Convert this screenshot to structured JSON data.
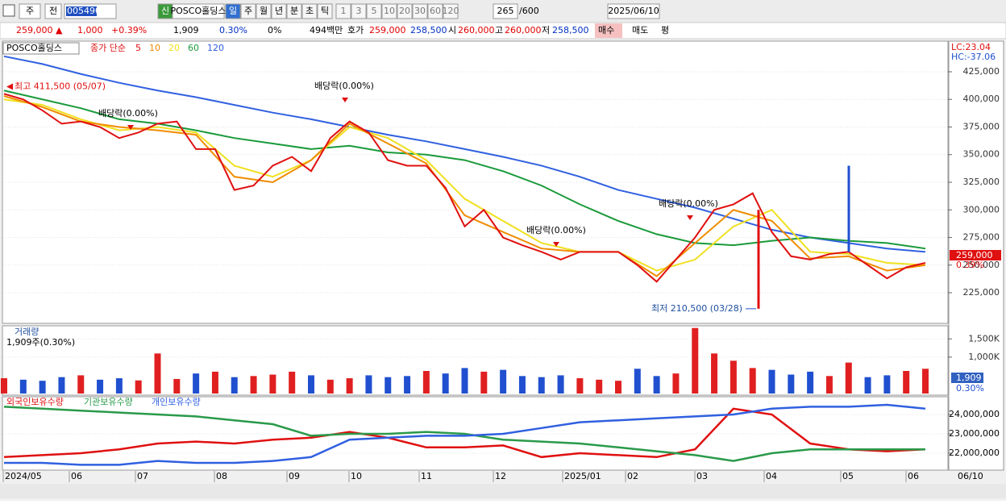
{
  "toolbar": {
    "kind": "주",
    "mode": "전",
    "code": "005490",
    "name": "POSCO홀딩스",
    "new": "신",
    "periods": [
      "일",
      "주",
      "월",
      "년",
      "분",
      "초",
      "틱"
    ],
    "intervals": [
      "1",
      "3",
      "5",
      "10",
      "20",
      "30",
      "60",
      "120"
    ],
    "count": "265",
    "max": "/600",
    "date": "2025/06/10"
  },
  "quote": [
    {
      "text": "259,000 ▲",
      "color": "#e00000"
    },
    {
      "text": "1,000",
      "color": "#e00000"
    },
    {
      "text": "+0.39%",
      "color": "#e00000"
    },
    {
      "text": "1,909",
      "color": "#000"
    },
    {
      "text": "0.30%",
      "color": "#0030c0"
    },
    {
      "text": "0%",
      "color": "#000"
    },
    {
      "text": "494백만",
      "color": "#000"
    },
    {
      "text": "호가",
      "color": "#000"
    },
    {
      "text": "259,000",
      "color": "#e00000"
    },
    {
      "text": "258,500",
      "color": "#0030c0"
    },
    {
      "text": "시",
      "color": "#000"
    },
    {
      "text": "260,000",
      "color": "#e00000"
    },
    {
      "text": "고",
      "color": "#000"
    },
    {
      "text": "260,000",
      "color": "#e00000"
    },
    {
      "text": "저",
      "color": "#000"
    },
    {
      "text": "258,500",
      "color": "#0030c0"
    },
    {
      "text": "매수",
      "color": "#000"
    },
    {
      "text": "매도",
      "color": "#000"
    },
    {
      "text": "평",
      "color": "#000"
    }
  ],
  "price_chart": {
    "type": "line",
    "name": "POSCO홀딩스",
    "legend_title": "종가 단순",
    "lc": "LC:23.04",
    "hc": "HC:-37.06",
    "ylim": [
      198000,
      452000
    ],
    "yticks": [
      {
        "value": 425000,
        "label": "425,000"
      },
      {
        "value": 400000,
        "label": "400,000"
      },
      {
        "value": 375000,
        "label": "375,000"
      },
      {
        "value": 350000,
        "label": "350,000"
      },
      {
        "value": 325000,
        "label": "325,000"
      },
      {
        "value": 300000,
        "label": "300,000"
      },
      {
        "value": 275000,
        "label": "275,000"
      },
      {
        "value": 250000,
        "label": "250,000"
      },
      {
        "value": 225000,
        "label": "225,000"
      }
    ],
    "series": [
      {
        "name": "5",
        "color": "#e01010",
        "values": [
          405000,
          400000,
          390000,
          378000,
          380000,
          375000,
          365000,
          370000,
          378000,
          380000,
          355000,
          355000,
          318000,
          322000,
          340000,
          348000,
          335000,
          365000,
          380000,
          370000,
          345000,
          340000,
          340000,
          320000,
          285000,
          300000,
          275000,
          268000,
          262000,
          255000,
          262000,
          262000,
          262000,
          250000,
          235000,
          255000,
          275000,
          300000,
          305000,
          315000,
          280000,
          258000,
          255000,
          260000,
          262000,
          250000,
          238000,
          248000,
          252000
        ]
      },
      {
        "name": "10",
        "color": "#f08c00",
        "values": [
          403000,
          393000,
          380000,
          375000,
          372000,
          368000,
          330000,
          325000,
          345000,
          378000,
          360000,
          342000,
          295000,
          280000,
          265000,
          262000,
          262000,
          240000,
          270000,
          300000,
          290000,
          256000,
          258000,
          245000,
          250000
        ]
      },
      {
        "name": "20",
        "color": "#f0e020",
        "values": [
          400000,
          395000,
          382000,
          372000,
          375000,
          370000,
          340000,
          330000,
          345000,
          375000,
          365000,
          345000,
          310000,
          290000,
          270000,
          262000,
          262000,
          245000,
          255000,
          285000,
          300000,
          262000,
          260000,
          252000,
          250000
        ]
      },
      {
        "name": "60",
        "color": "#1a9a3a",
        "values": [
          408000,
          400000,
          392000,
          382000,
          378000,
          372000,
          365000,
          360000,
          355000,
          358000,
          352000,
          350000,
          345000,
          335000,
          322000,
          305000,
          290000,
          278000,
          270000,
          268000,
          272000,
          275000,
          272000,
          270000,
          265000
        ]
      },
      {
        "name": "120",
        "color": "#3060e0",
        "values": [
          439000,
          432000,
          423000,
          415000,
          408000,
          402000,
          395000,
          388000,
          382000,
          375000,
          368000,
          362000,
          355000,
          348000,
          340000,
          330000,
          318000,
          310000,
          302000,
          292000,
          282000,
          275000,
          270000,
          265000,
          262000
        ]
      }
    ],
    "high": {
      "text": "최고 411,500 (05/07)",
      "value": 411500
    },
    "low": {
      "text": "최저 210,500 (03/28)",
      "value": 210500
    },
    "spike": 340000,
    "dividends": [
      "배당락(0.00%)",
      "배당락(0.00%)",
      "배당락(0.00%)",
      "배당락(0.00%)"
    ],
    "last": {
      "price": "259,000",
      "change": "0.39%"
    }
  },
  "volume_chart": {
    "type": "bar",
    "title": "거래량",
    "info": "1,909주(0.30%)",
    "ylim": [
      0,
      1860000
    ],
    "yticks": [
      {
        "value": 1500000,
        "label": "1,500K"
      },
      {
        "value": 1000000,
        "label": "1,000K"
      }
    ],
    "values": [
      420000,
      380000,
      350000,
      450000,
      500000,
      380000,
      420000,
      360000,
      1100000,
      400000,
      550000,
      600000,
      450000,
      480000,
      520000,
      600000,
      500000,
      380000,
      420000,
      500000,
      450000,
      480000,
      620000,
      550000,
      700000,
      600000,
      650000,
      480000,
      450000,
      500000,
      420000,
      380000,
      350000,
      680000,
      480000,
      550000,
      1800000,
      1100000,
      900000,
      700000,
      650000,
      520000,
      600000,
      480000,
      850000,
      450000,
      500000,
      620000,
      680000
    ],
    "up_color": "#e02020",
    "down_color": "#2050d0",
    "last": {
      "value": "1,909",
      "pct": "0.30%"
    }
  },
  "holdings_chart": {
    "type": "line",
    "ylim": [
      21125000,
      24917000
    ],
    "yticks": [
      {
        "value": 24000000,
        "label": "24,000,000"
      },
      {
        "value": 23000000,
        "label": "23,000,000"
      },
      {
        "value": 22000000,
        "label": "22,000,000"
      }
    ],
    "series": [
      {
        "name": "외국인보유수량",
        "color": "#e01010",
        "values": [
          21800000,
          21900000,
          22000000,
          22200000,
          22500000,
          22600000,
          22500000,
          22700000,
          22800000,
          23100000,
          22800000,
          22300000,
          22300000,
          22400000,
          21800000,
          22000000,
          21900000,
          21800000,
          22200000,
          24300000,
          24000000,
          22500000,
          22200000,
          22100000,
          22200000
        ]
      },
      {
        "name": "기관보유수량",
        "color": "#2a9a4a",
        "values": [
          24400000,
          24300000,
          24200000,
          24100000,
          24000000,
          23900000,
          23700000,
          23500000,
          22900000,
          23000000,
          23000000,
          23100000,
          23000000,
          22700000,
          22600000,
          22500000,
          22300000,
          22100000,
          21900000,
          21600000,
          22000000,
          22200000,
          22200000,
          22200000,
          22200000
        ]
      },
      {
        "name": "개인보유수량",
        "color": "#3060e0",
        "values": [
          21500000,
          21500000,
          21400000,
          21400000,
          21600000,
          21500000,
          21500000,
          21600000,
          21800000,
          22700000,
          22800000,
          22900000,
          22900000,
          23000000,
          23300000,
          23600000,
          23700000,
          23800000,
          23900000,
          24000000,
          24300000,
          24400000,
          24400000,
          24500000,
          24300000
        ]
      }
    ]
  },
  "x_axis": {
    "labels": [
      "2024/05",
      "06",
      "07",
      "08",
      "09",
      "10",
      "11",
      "12",
      "2025/01",
      "02",
      "03",
      "04",
      "05",
      "06"
    ],
    "end": "06/10"
  }
}
